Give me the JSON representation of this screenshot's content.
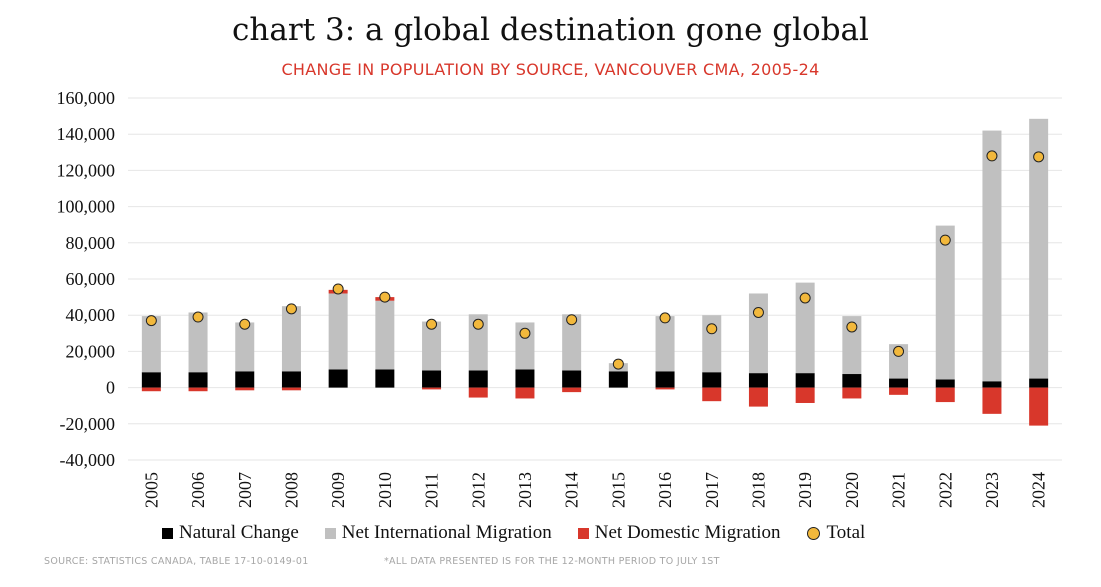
{
  "title": "chart 3: a global destination gone global",
  "subtitle": "CHANGE IN POPULATION BY SOURCE, VANCOUVER CMA, 2005-24",
  "footer": {
    "source": "SOURCE: STATISTICS CANADA, TABLE 17-10-0149-01",
    "note": "*ALL DATA PRESENTED IS FOR THE 12-MONTH PERIOD TO JULY 1ST"
  },
  "colors": {
    "natural": "#000000",
    "international": "#c0c0c0",
    "domestic": "#d8372b",
    "total": "#f2b83c"
  },
  "chart_data": {
    "type": "bar",
    "stacked": true,
    "categories": [
      "2005",
      "2006",
      "2007",
      "2008",
      "2009",
      "2010",
      "2011",
      "2012",
      "2013",
      "2014",
      "2015",
      "2016",
      "2017",
      "2018",
      "2019",
      "2020",
      "2021",
      "2022",
      "2023",
      "2024"
    ],
    "series": [
      {
        "name": "Natural Change",
        "values": [
          8500,
          8500,
          9000,
          9000,
          10000,
          10000,
          9500,
          9500,
          10000,
          9500,
          9000,
          9000,
          8500,
          8000,
          8000,
          7500,
          5000,
          4500,
          3500,
          5000
        ]
      },
      {
        "name": "Net International Migration",
        "values": [
          31000,
          33000,
          27000,
          36000,
          42000,
          38000,
          27000,
          31000,
          26000,
          31000,
          4500,
          30500,
          31500,
          44000,
          50000,
          32000,
          19000,
          85000,
          138500,
          143500
        ]
      },
      {
        "name": "Net Domestic Migration",
        "values": [
          -2000,
          -2000,
          -1500,
          -1500,
          2000,
          2000,
          -1000,
          -5500,
          -6000,
          -2500,
          0,
          -1000,
          -7500,
          -10500,
          -8500,
          -6000,
          -4000,
          -8000,
          -14500,
          -21000
        ]
      },
      {
        "name": "Total",
        "values": [
          37000,
          39000,
          35000,
          43500,
          54500,
          50000,
          35000,
          35000,
          30000,
          37500,
          13000,
          38500,
          32500,
          41500,
          49500,
          33500,
          20000,
          81500,
          128000,
          127500
        ]
      }
    ],
    "y_ticks": [
      "160,000",
      "140,000",
      "120,000",
      "100,000",
      "80,000",
      "60,000",
      "40,000",
      "20,000",
      "0",
      "-20,000",
      "-40,000"
    ],
    "ylim": [
      -40000,
      160000
    ],
    "grid": true,
    "legend": "bottom",
    "legend_labels": [
      "Natural Change",
      "Net International Migration",
      "Net Domestic Migration",
      "Total"
    ]
  }
}
